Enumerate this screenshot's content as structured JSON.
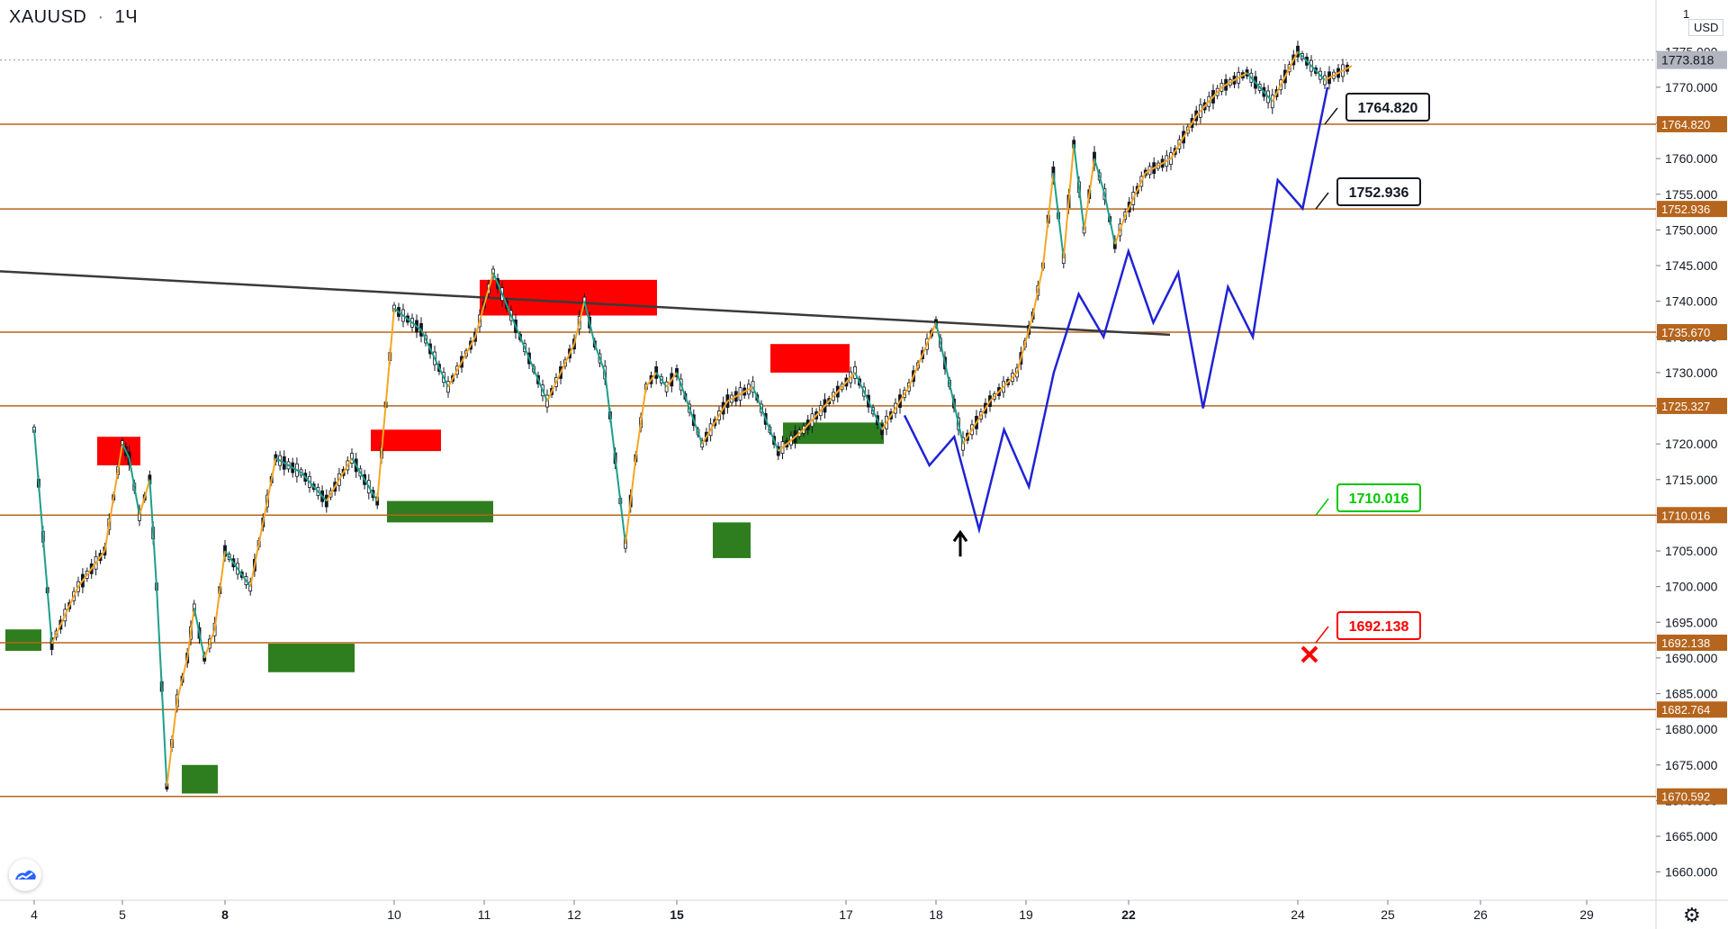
{
  "header": {
    "symbol": "XAUUSD",
    "interval": "1Ч",
    "currency": "USD",
    "scale_mode": "1"
  },
  "colors": {
    "background": "#ffffff",
    "level_line": "#b5651d",
    "level_label_bg": "#b5651d",
    "zigzag_up": "#f5a623",
    "zigzag_down": "#1e9e8a",
    "projection": "#1f22d6",
    "trendline": "#3a3a3a",
    "resistance_box": "#ff0000",
    "support_box": "#2e7d1e",
    "candle": "#131722",
    "stop_label": "#ff0000",
    "target_label": "#00c800"
  },
  "chart_data": {
    "type": "line",
    "title": "",
    "ylim": [
      1655,
      1782
    ],
    "y_ticks": [
      1660,
      1665,
      1670,
      1675,
      1680,
      1685,
      1690,
      1695,
      1700,
      1705,
      1710,
      1715,
      1720,
      1725,
      1730,
      1735,
      1740,
      1745,
      1750,
      1755,
      1760,
      1765,
      1770,
      1775
    ],
    "y_tick_labels": [
      "1660.000",
      "1665.000",
      "1670.000",
      "1675.000",
      "1680.000",
      "1685.000",
      "1690.000",
      "1695.000",
      "1700.000",
      "1705.000",
      "1710.000",
      "1715.000",
      "1720.000",
      "1725.000",
      "1730.000",
      "1735.000",
      "1740.000",
      "1745.000",
      "1750.000",
      "1755.000",
      "1760.000",
      "1765.000",
      "1770.000",
      "1775.000"
    ],
    "x_axis_labels": [
      "4",
      "5",
      "8",
      "10",
      "11",
      "12",
      "15",
      "17",
      "18",
      "19",
      "22",
      "24",
      "25",
      "26",
      "29"
    ],
    "bold_x_labels": [
      "8",
      "15",
      "22"
    ],
    "current_price": 1773.818,
    "current_price_label": "1773.818",
    "horizontal_levels": [
      {
        "value": 1764.82,
        "label": "1764.820"
      },
      {
        "value": 1752.936,
        "label": "1752.936"
      },
      {
        "value": 1735.67,
        "label": "1735.670"
      },
      {
        "value": 1725.327,
        "label": "1725.327"
      },
      {
        "value": 1710.016,
        "label": "1710.016"
      },
      {
        "value": 1692.138,
        "label": "1692.138"
      },
      {
        "value": 1682.764,
        "label": "1682.764"
      },
      {
        "value": 1670.592,
        "label": "1670.592"
      }
    ],
    "annotations": [
      {
        "label": "1764.820",
        "kind": "neutral"
      },
      {
        "label": "1752.936",
        "kind": "neutral"
      },
      {
        "label": "1710.016",
        "kind": "target"
      },
      {
        "label": "1692.138",
        "kind": "stop"
      }
    ],
    "series": [
      {
        "kind": "price",
        "x": [
          4,
          4.2,
          4.5,
          4.8,
          5,
          5.2,
          5.5,
          5.8,
          6,
          6.3,
          6.6,
          6.9,
          7.1,
          7.4,
          7.7,
          8,
          8.3,
          8.6,
          8.9,
          9.2,
          9.5,
          9.8,
          10,
          10.3,
          10.6,
          10.9,
          11.1,
          11.4,
          11.7,
          12,
          12.3,
          12.6,
          12.9,
          13.2,
          13.5,
          13.8,
          14.1,
          14.4,
          14.7,
          15,
          15.3,
          15.6,
          15.9,
          16.2,
          16.5,
          16.8,
          17.1,
          17.4,
          17.7,
          18,
          18.3,
          18.6,
          18.9,
          19.2,
          19.5,
          19.8,
          20.1,
          20.4,
          20.7,
          21,
          21.3,
          21.6,
          21.9,
          22.2,
          22.5,
          22.8,
          23.1,
          23.4,
          23.7,
          24,
          24.3,
          24.6
        ],
        "values": [
          1722,
          1692,
          1700,
          1705,
          1720,
          1718,
          1710,
          1715,
          1700,
          1672,
          1684,
          1690,
          1697,
          1690,
          1694,
          1705,
          1700,
          1718,
          1716,
          1712,
          1718,
          1712,
          1739,
          1736,
          1728,
          1735,
          1744,
          1735,
          1726,
          1734,
          1740,
          1734,
          1730,
          1718,
          1706,
          1718,
          1728,
          1730,
          1728,
          1730,
          1720,
          1726,
          1728,
          1719,
          1722,
          1726,
          1730,
          1722,
          1728,
          1737,
          1720,
          1726,
          1730,
          1738,
          1745,
          1758,
          1746,
          1762,
          1750,
          1760,
          1755,
          1748,
          1752,
          1758,
          1760,
          1766,
          1770,
          1772,
          1768,
          1775,
          1771,
          1773
        ]
      },
      {
        "kind": "projection",
        "name": "",
        "values": [
          1724,
          1717,
          1721,
          1708,
          1722,
          1714,
          1730,
          1741,
          1735,
          1747,
          1737,
          1744,
          1725,
          1742,
          1735,
          1757,
          1753,
          1770
        ]
      }
    ],
    "zones": [
      {
        "type": "resistance",
        "top": 1721,
        "bottom": 1717
      },
      {
        "type": "resistance",
        "top": 1722,
        "bottom": 1719
      },
      {
        "type": "resistance",
        "top": 1743,
        "bottom": 1738
      },
      {
        "type": "resistance",
        "top": 1734,
        "bottom": 1730
      },
      {
        "type": "support",
        "top": 1712,
        "bottom": 1709
      },
      {
        "type": "support",
        "top": 1694,
        "bottom": 1691
      },
      {
        "type": "support",
        "top": 1692,
        "bottom": 1688
      },
      {
        "type": "support",
        "top": 1709,
        "bottom": 1704
      },
      {
        "type": "support",
        "top": 1675,
        "bottom": 1671
      },
      {
        "type": "support",
        "top": 1723,
        "bottom": 1720
      }
    ],
    "grid": false,
    "legend": "none"
  },
  "icons": {
    "settings": "gear-icon",
    "brand": "tradingview-logo",
    "arrow": "up-arrow-icon",
    "cross": "cross-icon"
  }
}
